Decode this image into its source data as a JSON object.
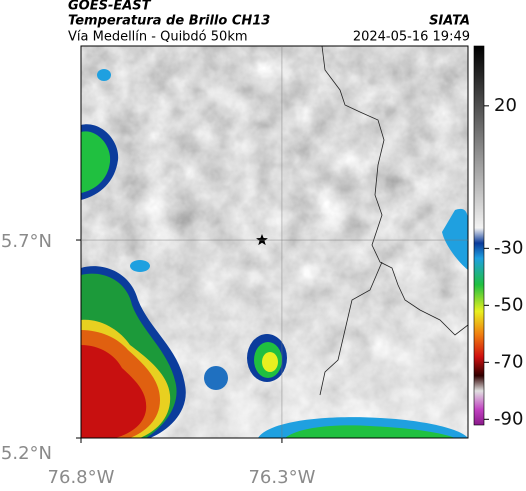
{
  "header": {
    "source": "GOES-EAST",
    "product": "Temperatura de Brillo CH13",
    "org": "SIATA",
    "route": "Vía Medellín - Quibdó 50km",
    "timestamp": "2024-05-16 19:49"
  },
  "map": {
    "lonlim": [
      -76.8,
      -75.837
    ],
    "latlim": [
      5.2,
      6.19
    ],
    "lonticks": [
      {
        "value": -76.8,
        "label": "76.8°W"
      },
      {
        "value": -76.3,
        "label": "76.3°W"
      }
    ],
    "latticks": [
      {
        "value": 5.7,
        "label": "5.7°N"
      },
      {
        "value": 5.2,
        "label": "5.2°N"
      }
    ]
  },
  "colorbar": {
    "range": [
      41,
      -92
    ],
    "ticks": [
      20,
      -30,
      -50,
      -70,
      -90
    ]
  }
}
